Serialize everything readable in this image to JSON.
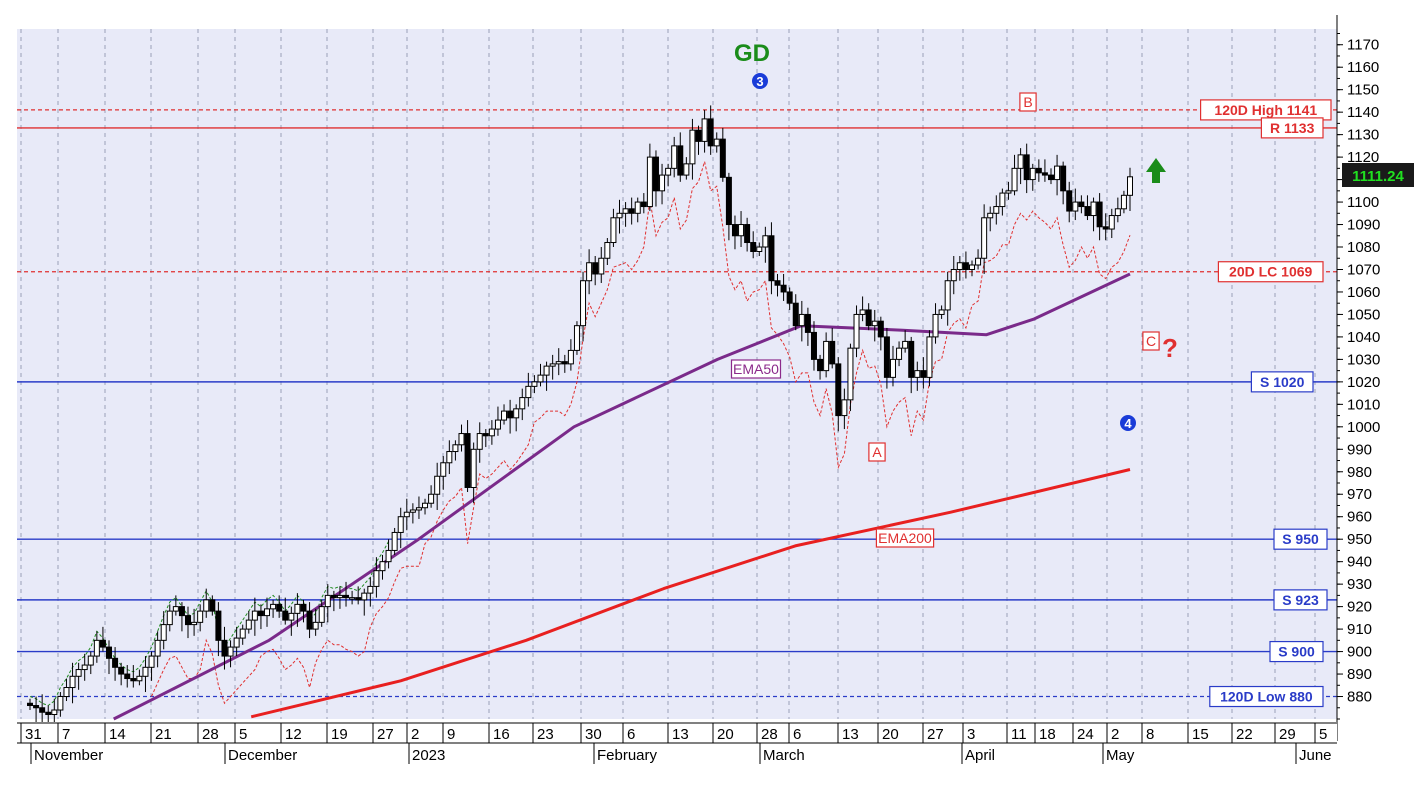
{
  "chart_data": {
    "type": "candlestick",
    "title": "GD",
    "y_range": [
      870,
      1177
    ],
    "y_ticks": [
      880,
      890,
      900,
      910,
      920,
      930,
      940,
      950,
      960,
      970,
      980,
      990,
      1000,
      1010,
      1020,
      1030,
      1040,
      1050,
      1060,
      1070,
      1080,
      1090,
      1100,
      1110,
      1120,
      1130,
      1140,
      1150,
      1160,
      1170
    ],
    "last_price": "1111.24",
    "x_tick_labels": [
      "31",
      "7",
      "14",
      "21",
      "28",
      "5",
      "12",
      "19",
      "27",
      "2",
      "9",
      "16",
      "23",
      "30",
      "6",
      "13",
      "20",
      "28",
      "6",
      "13",
      "20",
      "27",
      "3",
      "11",
      "18",
      "24",
      "2",
      "8",
      "15",
      "22",
      "29",
      "5"
    ],
    "month_labels": [
      "November",
      "December",
      "2023",
      "February",
      "March",
      "April",
      "May",
      "June"
    ],
    "horizontal_lines": [
      {
        "label": "120D High 1141",
        "value": 1141,
        "style": "dashed",
        "color": "#e03030"
      },
      {
        "label": "R 1133",
        "value": 1133,
        "style": "solid",
        "color": "#e03030"
      },
      {
        "label": "20D LC 1069",
        "value": 1069,
        "style": "dashed",
        "color": "#e03030"
      },
      {
        "label": "S 1020",
        "value": 1020,
        "style": "solid",
        "color": "#2a3cc8"
      },
      {
        "label": "S 950",
        "value": 950,
        "style": "solid",
        "color": "#2a3cc8"
      },
      {
        "label": "S 923",
        "value": 923,
        "style": "solid",
        "color": "#2a3cc8"
      },
      {
        "label": "S 900",
        "value": 900,
        "style": "solid",
        "color": "#2a3cc8"
      },
      {
        "label": "120D Low 880",
        "value": 880,
        "style": "dashed",
        "color": "#2a3cc8"
      }
    ],
    "closes": [
      876,
      875,
      873,
      872,
      874,
      880,
      884,
      889,
      892,
      894,
      898,
      905,
      902,
      897,
      893,
      890,
      888,
      887,
      889,
      893,
      898,
      905,
      912,
      918,
      920,
      916,
      912,
      913,
      918,
      923,
      918,
      905,
      898,
      902,
      906,
      910,
      914,
      918,
      916,
      919,
      921,
      918,
      914,
      917,
      921,
      918,
      910,
      913,
      920,
      925,
      924,
      925,
      924,
      924,
      923,
      926,
      929,
      936,
      940,
      945,
      953,
      960,
      962,
      963,
      964,
      966,
      970,
      978,
      984,
      989,
      992,
      997,
      973,
      990,
      997,
      996,
      999,
      1003,
      1007,
      1004,
      1008,
      1013,
      1018,
      1020,
      1023,
      1027,
      1028,
      1029,
      1028,
      1034,
      1045,
      1065,
      1073,
      1068,
      1075,
      1082,
      1093,
      1095,
      1097,
      1095,
      1100,
      1098,
      1120,
      1105,
      1112,
      1115,
      1125,
      1112,
      1117,
      1132,
      1127,
      1137,
      1125,
      1128,
      1111,
      1090,
      1085,
      1090,
      1082,
      1078,
      1080,
      1085,
      1065,
      1063,
      1060,
      1055,
      1045,
      1050,
      1042,
      1030,
      1025,
      1038,
      1028,
      1005,
      1012,
      1035,
      1050,
      1052,
      1045,
      1047,
      1040,
      1022,
      1030,
      1035,
      1038,
      1022,
      1025,
      1022,
      1040,
      1050,
      1052,
      1065,
      1070,
      1073,
      1070,
      1072,
      1075,
      1093,
      1095,
      1098,
      1104,
      1105,
      1115,
      1121,
      1110,
      1115,
      1113,
      1112,
      1110,
      1116,
      1105,
      1096,
      1100,
      1098,
      1094,
      1100,
      1089,
      1088,
      1094,
      1097,
      1103,
      1111.24
    ],
    "candle_steps": [
      {
        "values": [
          875,
          874,
          872,
          873,
          875,
          879,
          883,
          888,
          891,
          893,
          897,
          903,
          901,
          896,
          894,
          891,
          889,
          888,
          890,
          894,
          898,
          905,
          912,
          918,
          920,
          917,
          913,
          914,
          918,
          922
        ]
      },
      {
        "values": [
          918,
          906,
          899,
          902,
          906,
          910,
          914,
          917,
          916,
          918,
          920,
          918,
          915,
          917,
          920,
          918,
          911,
          913,
          919,
          924,
          923,
          924,
          924,
          924,
          923,
          926,
          929,
          936,
          940,
          945
        ]
      }
    ],
    "ema50": {
      "name": "EMA50",
      "points": [
        [
          870,
          14
        ],
        [
          905,
          40
        ],
        [
          950,
          65
        ],
        [
          1000,
          91
        ],
        [
          1030,
          115
        ],
        [
          1045,
          129
        ],
        [
          1043,
          146
        ],
        [
          1041,
          160
        ],
        [
          1048,
          168
        ],
        [
          1068,
          184
        ]
      ]
    },
    "ema200": {
      "name": "EMA200",
      "points": [
        [
          871,
          37
        ],
        [
          887,
          62
        ],
        [
          905,
          83
        ],
        [
          928,
          106
        ],
        [
          947,
          128
        ],
        [
          962,
          154
        ],
        [
          981,
          184
        ]
      ]
    },
    "annotations": [
      {
        "text": "B",
        "color": "#e03030"
      },
      {
        "text": "A",
        "color": "#e03030"
      },
      {
        "text": "C",
        "color": "#e03030"
      },
      {
        "text": "?",
        "color": "#e03030"
      },
      {
        "text": "3",
        "color": "#1a3cd8"
      },
      {
        "text": "4",
        "color": "#1a3cd8"
      },
      {
        "text": "EMA50",
        "color": "#8b2a8b"
      },
      {
        "text": "EMA200",
        "color": "#e03030"
      }
    ],
    "colors": {
      "background": "#e8eaf8",
      "ema50": "#7a2a8a",
      "ema200": "#e82020",
      "resistance": "#e03030",
      "support": "#2a3cc8",
      "title": "#1a8c1a",
      "up_arrow": "#1a8c1a",
      "price_box": "#1a1a1a",
      "price_text": "#20e020"
    }
  }
}
